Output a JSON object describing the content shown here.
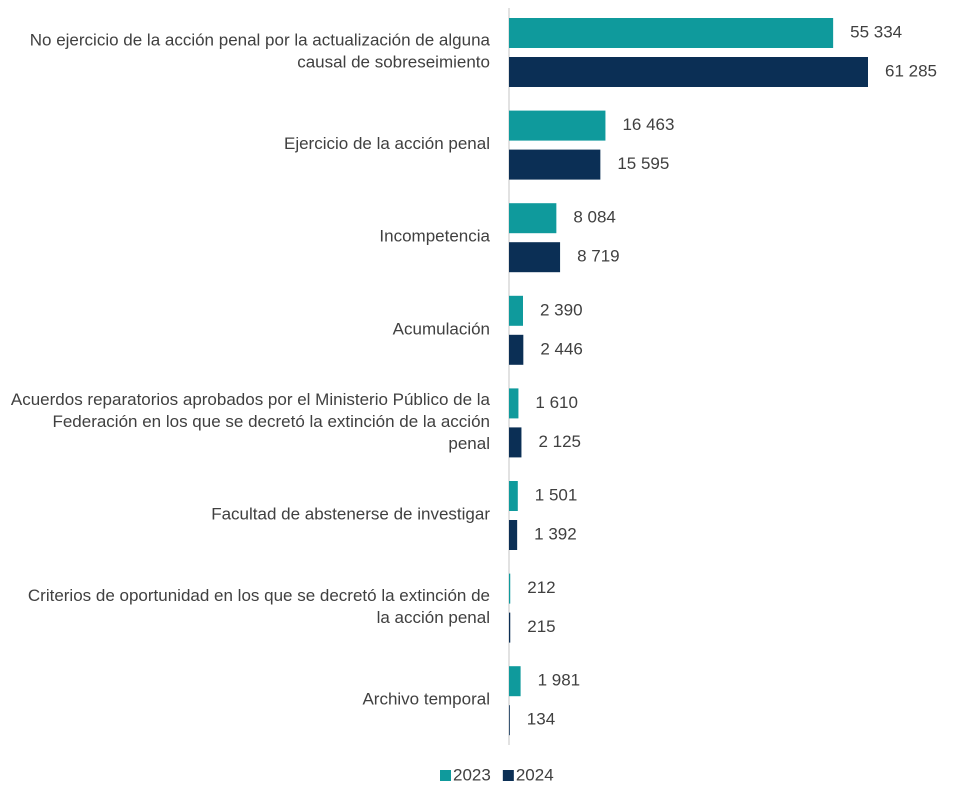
{
  "chart_data": {
    "type": "bar",
    "orientation": "horizontal",
    "categories": [
      "No ejercicio de la acción penal por la actualización de alguna causal de sobreseimiento",
      "Ejercicio de la acción penal",
      "Incompetencia",
      "Acumulación",
      "Acuerdos reparatorios aprobados por el Ministerio Público de la Federación en los que se decretó la extinción de la acción penal",
      "Facultad de abstenerse de investigar",
      "Criterios de oportunidad en los que se decretó la extinción de la acción penal",
      "Archivo temporal"
    ],
    "series": [
      {
        "name": "2023",
        "color": "#0f9a9c",
        "values": [
          55334,
          16463,
          8084,
          2390,
          1610,
          1501,
          212,
          1981
        ],
        "value_labels": [
          "55 334",
          "16 463",
          "8 084",
          "2 390",
          "1 610",
          "1 501",
          "212",
          "1 981"
        ]
      },
      {
        "name": "2024",
        "color": "#0b2f55",
        "values": [
          61285,
          15595,
          8719,
          2446,
          2125,
          1392,
          215,
          134
        ],
        "value_labels": [
          "61 285",
          "15 595",
          "8 719",
          "2 446",
          "2 125",
          "1 392",
          "215",
          "134"
        ]
      }
    ],
    "legend": "bottom"
  }
}
